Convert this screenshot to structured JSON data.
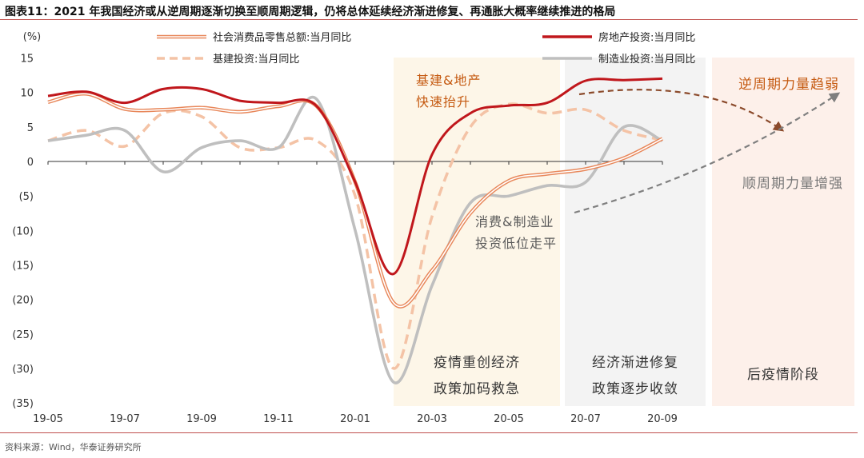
{
  "header": {
    "title": "图表11：2021 年我国经济或从逆周期逐渐切换至顺周期逻辑，仍将总体延续经济渐进修复、再通胀大概率继续推进的格局"
  },
  "footer": {
    "source": "资料来源：Wind，华泰证券研究所"
  },
  "chart_data": {
    "type": "line",
    "y_unit": "(%)",
    "ylim": [
      -35,
      15
    ],
    "y_ticks": [
      15,
      10,
      5,
      0,
      -5,
      -10,
      -15,
      -20,
      -25,
      -30,
      -35
    ],
    "y_tick_labels": [
      "15",
      "10",
      "5",
      "0",
      "(5)",
      "(10)",
      "(15)",
      "(20)",
      "(25)",
      "(30)",
      "(35)"
    ],
    "x": [
      "19-05",
      "19-06",
      "19-07",
      "19-08",
      "19-09",
      "19-10",
      "19-11",
      "19-12",
      "20-01",
      "20-02",
      "20-03",
      "20-04",
      "20-05",
      "20-06",
      "20-07",
      "20-08",
      "20-09"
    ],
    "x_tick_labels": [
      "19-05",
      "19-07",
      "19-09",
      "19-11",
      "20-01",
      "20-03",
      "20-05",
      "20-07",
      "20-09"
    ],
    "legend_placement": "top",
    "series": [
      {
        "name": "社会消费品零售总额:当月同比",
        "color": "#e8875a",
        "style": "double",
        "values": [
          8.6,
          9.8,
          7.6,
          7.5,
          7.8,
          7.2,
          8.0,
          8.0,
          -3.0,
          -20.5,
          -15.8,
          -7.5,
          -2.8,
          -1.8,
          -1.1,
          0.5,
          3.3
        ]
      },
      {
        "name": "房地产投资:当月同比",
        "color": "#c0171c",
        "style": "solid",
        "values": [
          9.5,
          10.1,
          8.5,
          10.5,
          10.5,
          8.8,
          8.5,
          8.0,
          -3.0,
          -16.3,
          1.0,
          7.0,
          8.1,
          8.5,
          11.7,
          11.8,
          12.0
        ]
      },
      {
        "name": "基建投资:当月同比",
        "color": "#f4c3a6",
        "style": "dashed",
        "values": [
          3.0,
          4.5,
          2.2,
          7.0,
          6.5,
          2.0,
          2.0,
          3.0,
          -5.0,
          -30.0,
          -8.0,
          5.0,
          8.3,
          7.0,
          7.5,
          4.5,
          3.1
        ]
      },
      {
        "name": "制造业投资:当月同比",
        "color": "#bfbfbf",
        "style": "solid",
        "values": [
          3.0,
          3.8,
          4.5,
          -1.5,
          2.0,
          3.0,
          2.0,
          9.0,
          -10.0,
          -32.0,
          -18.0,
          -6.0,
          -5.0,
          -3.5,
          -3.0,
          5.0,
          3.0
        ]
      }
    ],
    "phases": [
      {
        "lines": [
          "疫情重创经济",
          "政策加码救急"
        ],
        "color": "#fdf6e8"
      },
      {
        "lines": [
          "经济渐进修复",
          "政策逐步收敛"
        ],
        "color": "#f3f3f3"
      },
      {
        "lines": [
          "后疫情阶段"
        ],
        "color": "#fdf0ea"
      }
    ],
    "annotations": {
      "infra_property": [
        "基建&地产",
        "快速抬升"
      ],
      "consumption_mfg": [
        "消费&制造业",
        "投资低位走平"
      ],
      "counter_cyclical": "逆周期力量趋弱",
      "pro_cyclical": "顺周期力量增强"
    }
  }
}
